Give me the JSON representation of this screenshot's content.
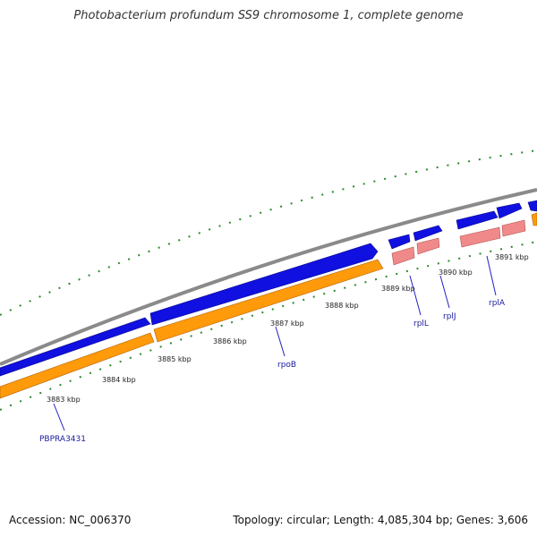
{
  "title": "Photobacterium profundum SS9 chromosome 1, complete genome",
  "footer": {
    "accession": "Accession: NC_006370",
    "stats": "Topology: circular; Length: 4,085,304 bp; Genes: 3,606"
  },
  "colors": {
    "backbone": "#8a8a8a",
    "cds_forward": "#1010e0",
    "cds_reverse": "#ff9a0a",
    "rrna": "#f08a8a",
    "ticks": "#2a8a2a",
    "label_line": "#2020c0"
  },
  "scale_labels": [
    "3883 kbp",
    "3884 kbp",
    "3885 kbp",
    "3886 kbp",
    "3887 kbp",
    "3888 kbp",
    "3889 kbp",
    "3890 kbp",
    "3891 kbp"
  ],
  "gene_labels": [
    "PBPRA3431",
    "rpoB",
    "rplL",
    "rplJ",
    "rplA"
  ]
}
